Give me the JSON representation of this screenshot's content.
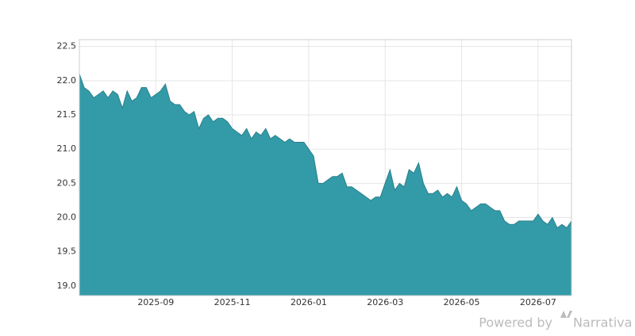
{
  "chart_data": {
    "type": "area",
    "categories": [
      null,
      null,
      null,
      null,
      null,
      null,
      null,
      null,
      null,
      null,
      null,
      null,
      null,
      null,
      null,
      null,
      "2025-09",
      null,
      null,
      null,
      null,
      null,
      null,
      null,
      null,
      null,
      null,
      null,
      null,
      null,
      null,
      null,
      "2025-11",
      null,
      null,
      null,
      null,
      null,
      null,
      null,
      null,
      null,
      null,
      null,
      null,
      null,
      null,
      null,
      "2026-01",
      null,
      null,
      null,
      null,
      null,
      null,
      null,
      null,
      null,
      null,
      null,
      null,
      null,
      null,
      null,
      "2026-03",
      null,
      null,
      null,
      null,
      null,
      null,
      null,
      null,
      null,
      null,
      null,
      null,
      null,
      null,
      null,
      "2026-05",
      null,
      null,
      null,
      null,
      null,
      null,
      null,
      null,
      null,
      null,
      null,
      null,
      null,
      null,
      null,
      "2026-07",
      null,
      null,
      null,
      null,
      null,
      null,
      null
    ],
    "values": [
      22.1,
      21.9,
      21.85,
      21.75,
      21.8,
      21.85,
      21.75,
      21.85,
      21.8,
      21.6,
      21.85,
      21.7,
      21.75,
      21.9,
      21.9,
      21.75,
      21.8,
      21.85,
      21.95,
      21.7,
      21.65,
      21.65,
      21.55,
      21.5,
      21.55,
      21.3,
      21.45,
      21.5,
      21.4,
      21.45,
      21.45,
      21.4,
      21.3,
      21.25,
      21.2,
      21.3,
      21.15,
      21.25,
      21.2,
      21.3,
      21.15,
      21.2,
      21.15,
      21.1,
      21.15,
      21.1,
      21.1,
      21.1,
      21.0,
      20.9,
      20.5,
      20.5,
      20.55,
      20.6,
      20.6,
      20.65,
      20.45,
      20.45,
      20.4,
      20.35,
      20.3,
      20.25,
      20.3,
      20.3,
      20.5,
      20.7,
      20.4,
      20.5,
      20.45,
      20.7,
      20.65,
      20.8,
      20.5,
      20.35,
      20.35,
      20.4,
      20.3,
      20.35,
      20.3,
      20.45,
      20.25,
      20.2,
      20.1,
      20.15,
      20.2,
      20.2,
      20.15,
      20.1,
      20.1,
      19.95,
      19.9,
      19.9,
      19.95,
      19.95,
      19.95,
      19.95,
      20.05,
      19.95,
      19.9,
      20.0,
      19.85,
      19.9,
      19.85,
      19.95
    ],
    "color": "#339ba8",
    "line_color": "#2a7f8b",
    "ylim": [
      18.86,
      22.6
    ],
    "yticks": [
      {
        "value": 19.0,
        "label": "19.0"
      },
      19.5,
      {
        "value": 20.0,
        "label": "20.0"
      },
      20.5,
      {
        "value": 21.0,
        "label": "21.0"
      },
      21.5,
      {
        "value": 22.0,
        "label": "22.0"
      },
      22.5
    ],
    "grid": true
  },
  "footer": {
    "text": "Powered by",
    "brand": "Narrativa"
  }
}
